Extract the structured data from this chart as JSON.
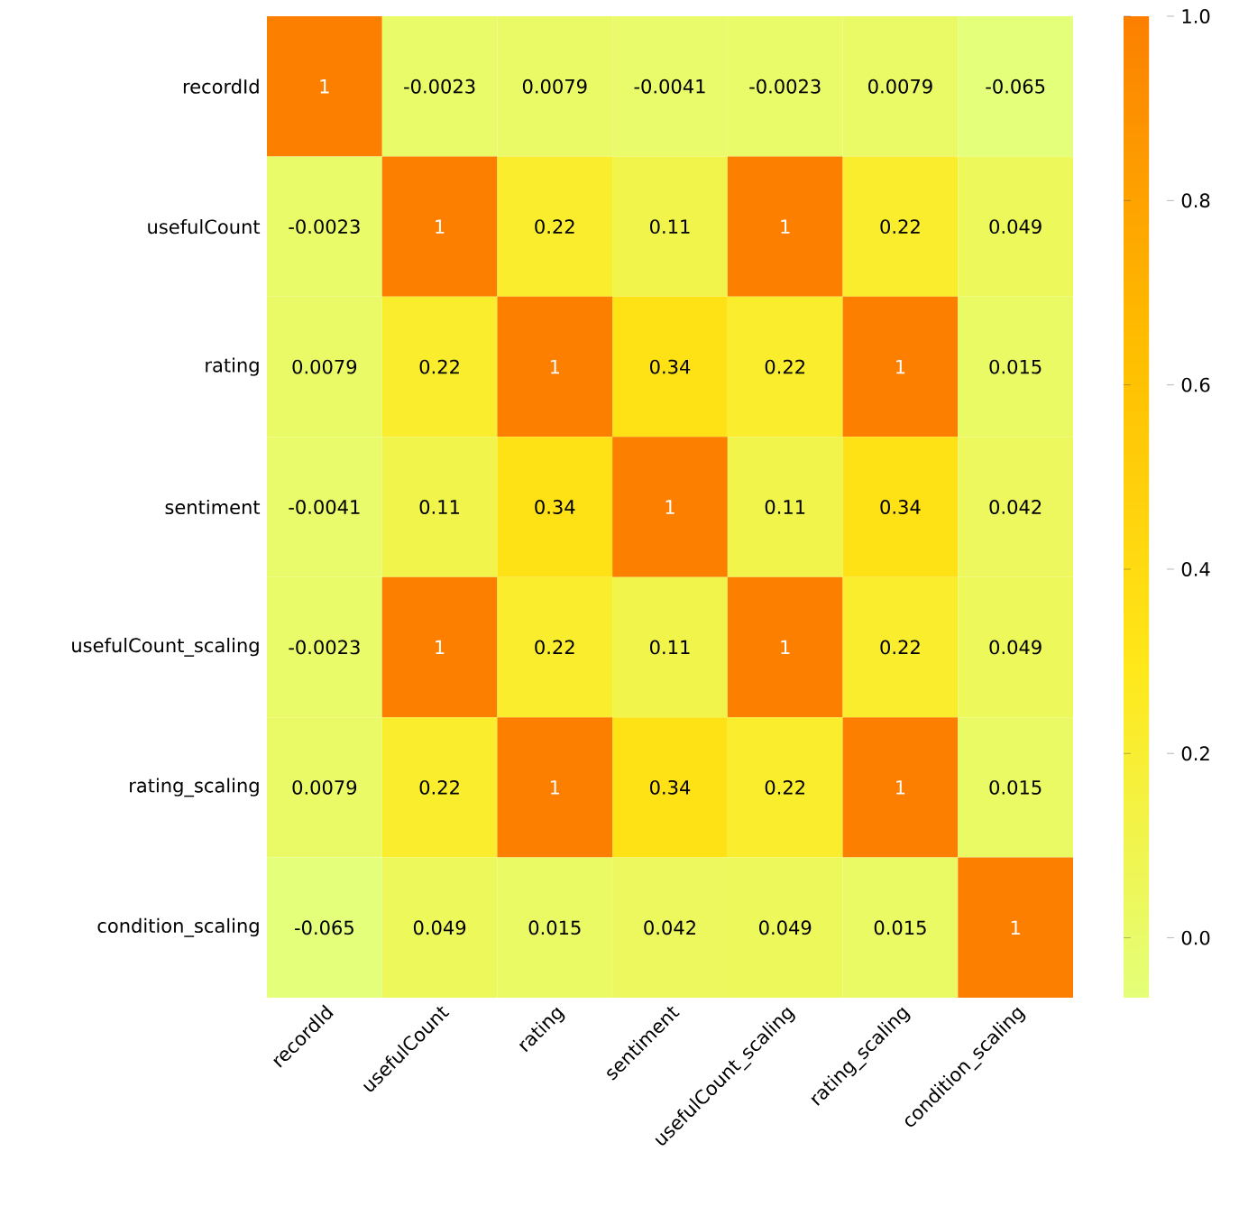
{
  "chart_data": {
    "type": "heatmap",
    "categories": [
      "recordId",
      "usefulCount",
      "rating",
      "sentiment",
      "usefulCount_scaling",
      "rating_scaling",
      "condition_scaling"
    ],
    "y_categories": [
      "recordId",
      "usefulCount",
      "rating",
      "sentiment",
      "usefulCount_scaling",
      "rating_scaling",
      "condition_scaling"
    ],
    "cells": [
      [
        1,
        -0.0023,
        0.0079,
        -0.0041,
        -0.0023,
        0.0079,
        -0.065
      ],
      [
        -0.0023,
        1,
        0.22,
        0.11,
        1,
        0.22,
        0.049
      ],
      [
        0.0079,
        0.22,
        1,
        0.34,
        0.22,
        1,
        0.015
      ],
      [
        -0.0041,
        0.11,
        0.34,
        1,
        0.11,
        0.34,
        0.042
      ],
      [
        -0.0023,
        1,
        0.22,
        0.11,
        1,
        0.22,
        0.049
      ],
      [
        0.0079,
        0.22,
        1,
        0.34,
        0.22,
        1,
        0.015
      ],
      [
        -0.065,
        0.049,
        0.015,
        0.042,
        0.049,
        0.015,
        1
      ]
    ],
    "data_labels": true,
    "clim": [
      -0.065,
      1
    ],
    "cticks": [
      {
        "value": 0,
        "label": "0.0"
      },
      {
        "value": 0.2,
        "label": "0.2"
      },
      {
        "value": 0.4,
        "label": "0.4"
      },
      {
        "value": 0.6,
        "label": "0.6"
      },
      {
        "value": 0.8,
        "label": "0.8"
      },
      {
        "value": 1,
        "label": "1.0"
      }
    ]
  }
}
